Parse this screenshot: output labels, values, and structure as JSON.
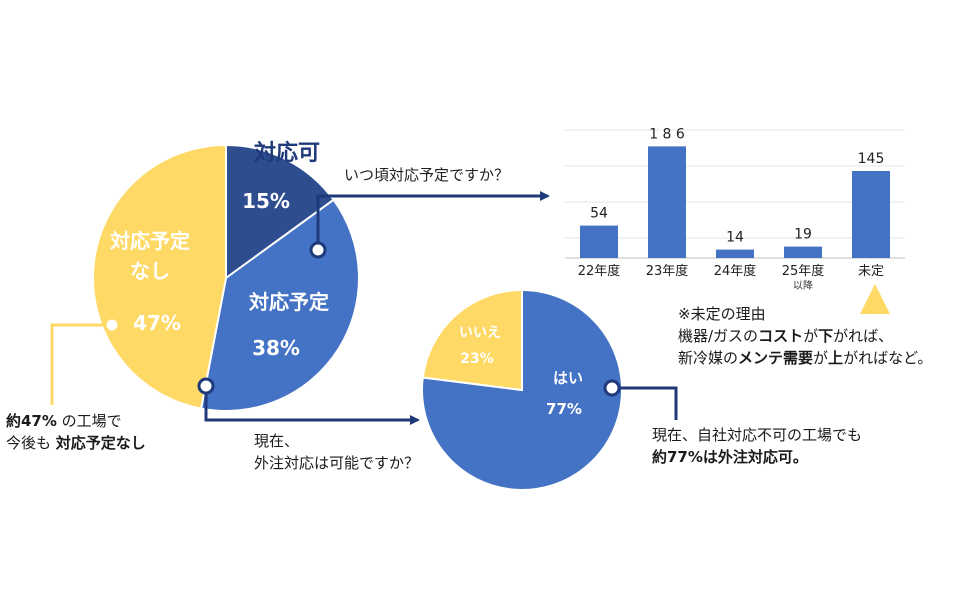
{
  "pie_main": {
    "slices": [
      {
        "label": "対応可",
        "pct_label": "15%",
        "value": 15,
        "color": "#2e4d8f"
      },
      {
        "label": "対応予定",
        "pct_label": "38%",
        "value": 38,
        "color": "#4472c4"
      },
      {
        "label": "対応予定\nなし",
        "pct_label": "47%",
        "value": 47,
        "color": "#ffd966"
      }
    ]
  },
  "q_when": "いつ頃対応予定ですか？",
  "q_outsource_line1": "現在、",
  "q_outsource_line2": "外注対応は可能ですか？",
  "note_left": {
    "line1_bold": "約47%",
    "line1_rest": " の工場で",
    "line2_rest": "今後も ",
    "line2_bold": "対応予定なし"
  },
  "note_right": {
    "line1": "現在、自社対応不可の工場でも",
    "line2_bold": "約77%",
    "line2_rest": "は外注対応可。"
  },
  "reason": {
    "title": "※未定の理由",
    "line1_a": "機器/ガスの",
    "line1_b": "コスト",
    "line1_c": "が",
    "line1_d": "下",
    "line1_e": "がれば、",
    "line2_a": "新冷媒の",
    "line2_b": "メンテ需要",
    "line2_c": "が",
    "line2_d": "上",
    "line2_e": "がれば",
    "line2_f": "など。"
  },
  "colors": {
    "blue": "#4472c4",
    "navy": "#1f3a7a",
    "yellow": "#ffd966",
    "dark_slice": "#2e4d8f"
  },
  "chart_data": [
    {
      "type": "pie",
      "series": [
        {
          "values": [
            15,
            38,
            47
          ]
        }
      ],
      "categories": [
        "対応可",
        "対応予定",
        "対応予定なし"
      ]
    },
    {
      "type": "bar",
      "categories": [
        "22年度",
        "23年度",
        "24年度",
        "25年度",
        "未定"
      ],
      "category_sublabels": [
        "",
        "",
        "",
        "以降",
        ""
      ],
      "values": [
        54,
        186,
        14,
        19,
        145
      ],
      "value_labels": [
        "54",
        "1 8 6",
        "14",
        "19",
        "145"
      ],
      "grid": true
    },
    {
      "type": "pie",
      "series": [
        {
          "values": [
            77,
            23
          ]
        }
      ],
      "categories": [
        "はい",
        "いいえ"
      ],
      "pct_labels": [
        "77%",
        "23%"
      ]
    }
  ]
}
